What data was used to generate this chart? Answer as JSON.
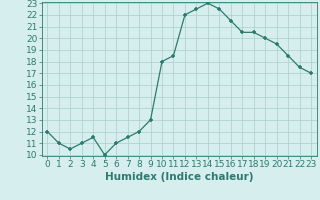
{
  "xlabel": "Humidex (Indice chaleur)",
  "ylabel": "",
  "x_values": [
    0,
    1,
    2,
    3,
    4,
    5,
    6,
    7,
    8,
    9,
    10,
    11,
    12,
    13,
    14,
    15,
    16,
    17,
    18,
    19,
    20,
    21,
    22,
    23
  ],
  "y_values": [
    12,
    11,
    10.5,
    11,
    11.5,
    10,
    11,
    11.5,
    12,
    13,
    18,
    18.5,
    22,
    22.5,
    23,
    22.5,
    21.5,
    20.5,
    20.5,
    20,
    19.5,
    18.5,
    17.5,
    17
  ],
  "ylim_min": 10,
  "ylim_max": 23,
  "xlim_min": -0.5,
  "xlim_max": 23.5,
  "yticks": [
    10,
    11,
    12,
    13,
    14,
    15,
    16,
    17,
    18,
    19,
    20,
    21,
    22,
    23
  ],
  "xticks": [
    0,
    1,
    2,
    3,
    4,
    5,
    6,
    7,
    8,
    9,
    10,
    11,
    12,
    13,
    14,
    15,
    16,
    17,
    18,
    19,
    20,
    21,
    22,
    23
  ],
  "line_color": "#2d7b6f",
  "marker_color": "#2d7b6f",
  "bg_color": "#d6eeee",
  "grid_color": "#aacece",
  "tick_label_color": "#2d7b6f",
  "xlabel_color": "#2d7b6f",
  "tick_fontsize": 6.5,
  "xlabel_fontsize": 7.5
}
